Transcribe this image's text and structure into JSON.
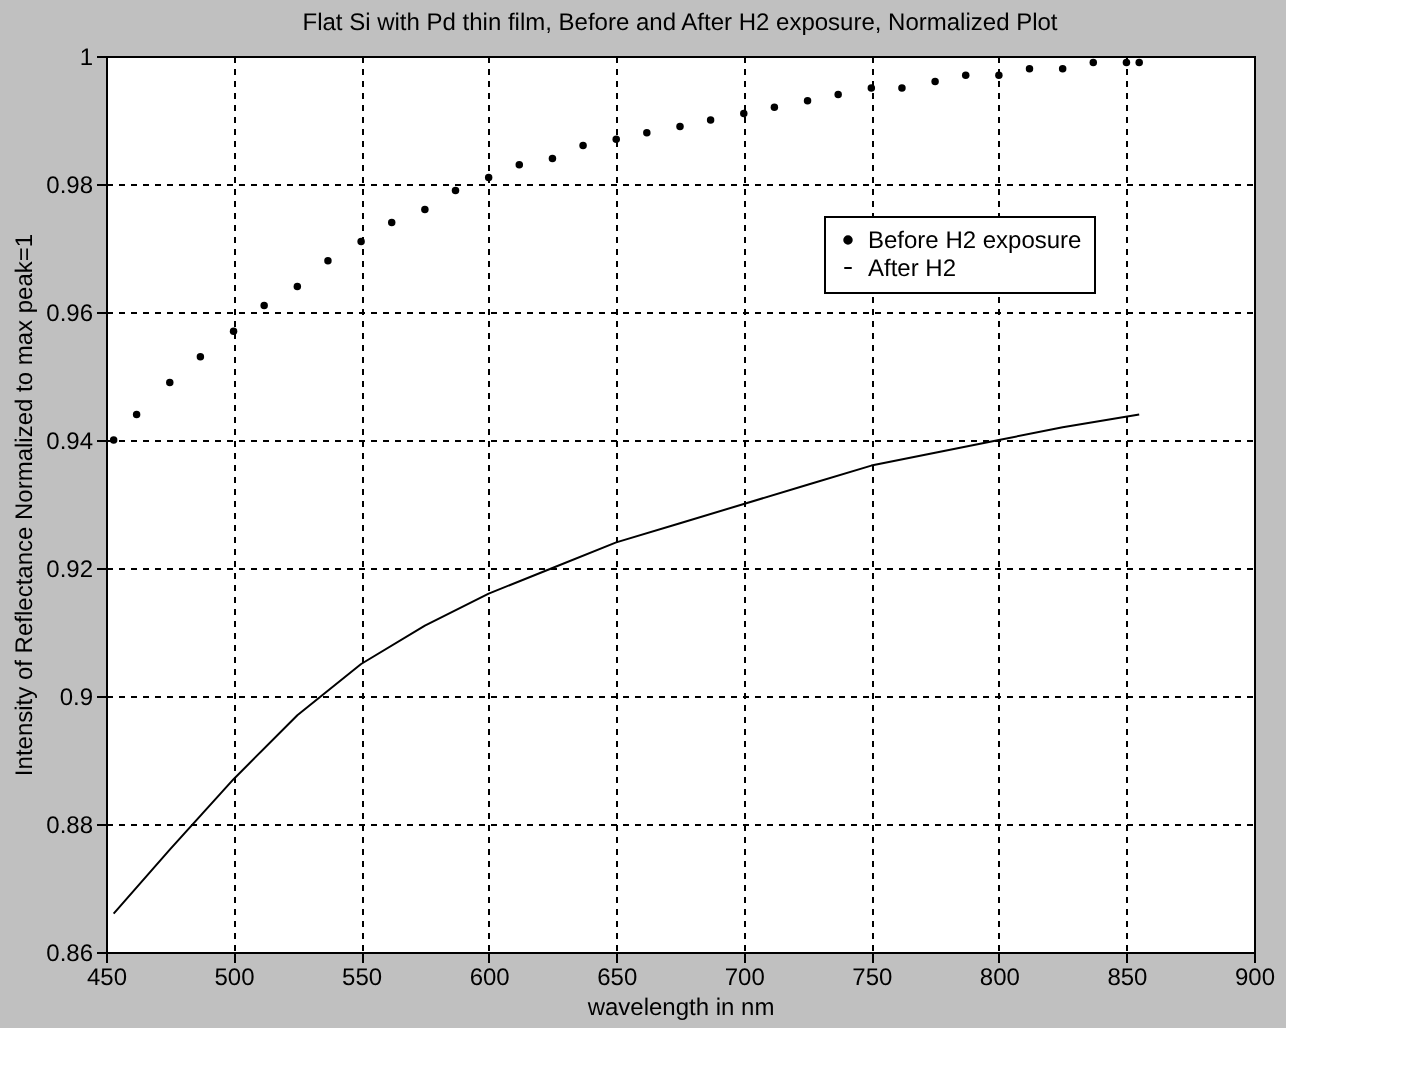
{
  "chart_data": {
    "type": "line",
    "title": "Flat Si with Pd thin film, Before and After H2 exposure, Normalized Plot",
    "xlabel": "wavelength in nm",
    "ylabel": "Intensity of Reflectance Normalized to max peak=1",
    "series": [
      {
        "name": "Before H2 exposure",
        "type": "scatter",
        "marker": "circle",
        "color": "#000000",
        "x": [
          453,
          462,
          475,
          487,
          500,
          512,
          525,
          537,
          550,
          562,
          575,
          587,
          600,
          612,
          625,
          637,
          650,
          662,
          675,
          687,
          700,
          712,
          725,
          737,
          750,
          762,
          775,
          787,
          800,
          812,
          825,
          837,
          850,
          855
        ],
        "values": [
          0.94,
          0.944,
          0.949,
          0.953,
          0.957,
          0.961,
          0.964,
          0.968,
          0.971,
          0.974,
          0.976,
          0.979,
          0.981,
          0.983,
          0.984,
          0.986,
          0.987,
          0.988,
          0.989,
          0.99,
          0.991,
          0.992,
          0.993,
          0.994,
          0.995,
          0.995,
          0.996,
          0.997,
          0.997,
          0.998,
          0.998,
          0.999,
          0.999,
          0.999
        ]
      },
      {
        "name": "After H2",
        "marker": "none",
        "line_style": "solid",
        "color": "#000000",
        "x": [
          453,
          475,
          500,
          525,
          550,
          575,
          600,
          625,
          650,
          675,
          700,
          725,
          750,
          775,
          800,
          825,
          855
        ],
        "values": [
          0.866,
          0.876,
          0.887,
          0.897,
          0.905,
          0.911,
          0.916,
          0.92,
          0.924,
          0.927,
          0.93,
          0.933,
          0.936,
          0.938,
          0.94,
          0.942,
          0.944
        ]
      }
    ],
    "xlim": [
      450,
      900
    ],
    "xticks": [
      450,
      500,
      550,
      600,
      650,
      700,
      750,
      800,
      850,
      900
    ],
    "ylim": [
      0.86,
      1
    ],
    "yticks": [
      0.86,
      0.88,
      0.9,
      0.92,
      0.94,
      0.96,
      0.98,
      1
    ],
    "grid": true,
    "legend": "top right"
  }
}
